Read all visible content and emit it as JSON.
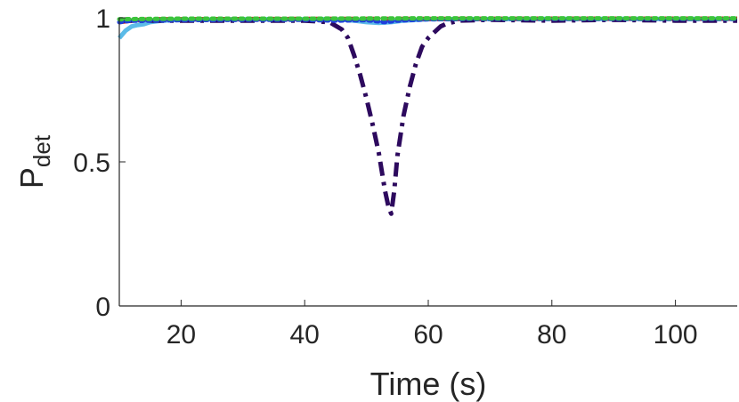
{
  "chart_data": {
    "type": "line",
    "title": "",
    "xlabel": "Time (s)",
    "ylabel": {
      "main": "P",
      "sub": "det"
    },
    "xlim": [
      10,
      110
    ],
    "ylim": [
      0,
      1
    ],
    "xticks": [
      20,
      40,
      60,
      80,
      100
    ],
    "yticks": [
      0,
      0.5,
      1
    ],
    "ytick_labels": [
      "0",
      "0.5",
      "1"
    ],
    "grid": false,
    "legend": "none",
    "series": [
      {
        "color": "#5bbbe8",
        "style": "solid",
        "points": [
          [
            10,
            0.93
          ],
          [
            11,
            0.955
          ],
          [
            12,
            0.97
          ],
          [
            13,
            0.975
          ],
          [
            14,
            0.978
          ],
          [
            15,
            0.985
          ],
          [
            17,
            0.99
          ],
          [
            20,
            0.993
          ],
          [
            30,
            0.995
          ],
          [
            40,
            0.995
          ],
          [
            45,
            0.995
          ],
          [
            48,
            0.99
          ],
          [
            50,
            0.985
          ],
          [
            52,
            0.982
          ],
          [
            54,
            0.985
          ],
          [
            56,
            0.99
          ],
          [
            60,
            0.995
          ],
          [
            80,
            0.996
          ],
          [
            110,
            0.996
          ]
        ]
      },
      {
        "color": "#c62828",
        "style": "dashed",
        "points": [
          [
            10,
            0.985
          ],
          [
            12,
            0.99
          ],
          [
            15,
            0.995
          ],
          [
            20,
            0.995
          ],
          [
            40,
            0.996
          ],
          [
            60,
            0.996
          ],
          [
            80,
            0.997
          ],
          [
            110,
            0.997
          ]
        ]
      },
      {
        "color": "#2d0a5e",
        "style": "dashdot",
        "points": [
          [
            10,
            0.99
          ],
          [
            15,
            0.99
          ],
          [
            20,
            0.99
          ],
          [
            30,
            0.99
          ],
          [
            40,
            0.99
          ],
          [
            44,
            0.985
          ],
          [
            46,
            0.96
          ],
          [
            47,
            0.93
          ],
          [
            48,
            0.87
          ],
          [
            49,
            0.8
          ],
          [
            50,
            0.72
          ],
          [
            51,
            0.63
          ],
          [
            52,
            0.53
          ],
          [
            53,
            0.4
          ],
          [
            53.6,
            0.34
          ],
          [
            54,
            0.32
          ],
          [
            54.5,
            0.4
          ],
          [
            55,
            0.52
          ],
          [
            56,
            0.66
          ],
          [
            57,
            0.76
          ],
          [
            58,
            0.84
          ],
          [
            59,
            0.9
          ],
          [
            60,
            0.93
          ],
          [
            61,
            0.95
          ],
          [
            62,
            0.97
          ],
          [
            63,
            0.98
          ],
          [
            65,
            0.99
          ],
          [
            70,
            0.993
          ],
          [
            80,
            0.99
          ],
          [
            90,
            0.993
          ],
          [
            100,
            0.99
          ],
          [
            110,
            0.99
          ]
        ]
      },
      {
        "color": "#1f3fdc",
        "style": "dotted",
        "points": [
          [
            10,
            0.985
          ],
          [
            12,
            0.99
          ],
          [
            15,
            0.99
          ],
          [
            20,
            0.992
          ],
          [
            30,
            0.993
          ],
          [
            40,
            0.993
          ],
          [
            45,
            0.99
          ],
          [
            50,
            0.992
          ],
          [
            53,
            0.985
          ],
          [
            55,
            0.99
          ],
          [
            60,
            0.995
          ],
          [
            70,
            0.996
          ],
          [
            80,
            0.996
          ],
          [
            90,
            0.996
          ],
          [
            110,
            0.996
          ]
        ]
      },
      {
        "color": "#3cc43c",
        "style": "dotted",
        "points": [
          [
            10,
            0.995
          ],
          [
            20,
            0.997
          ],
          [
            40,
            0.997
          ],
          [
            60,
            0.998
          ],
          [
            80,
            0.998
          ],
          [
            110,
            0.998
          ]
        ]
      }
    ]
  }
}
